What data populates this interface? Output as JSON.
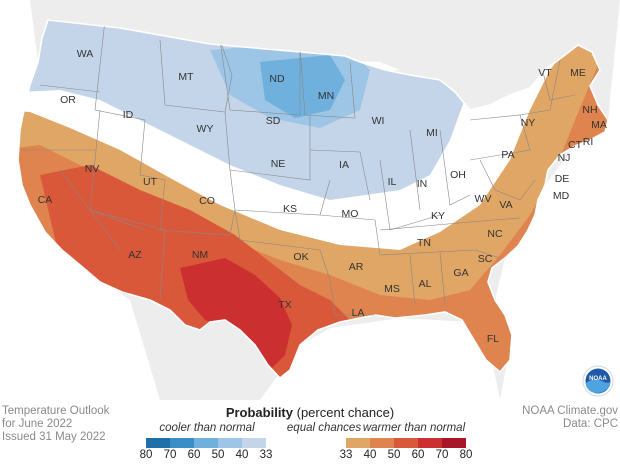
{
  "caption": {
    "title_line1": "Temperature Outlook",
    "title_line2": "for June 2022",
    "issued": "Issued 31 May 2022",
    "source_line1": "NOAA Climate.gov",
    "source_line2": "Data: CPC"
  },
  "legend": {
    "title_bold": "Probability",
    "title_rest": " (percent chance)",
    "cooler_label": "cooler than normal",
    "equal_label": "equal chances",
    "warmer_label": "warmer than normal",
    "cool_ticks": [
      "80",
      "70",
      "60",
      "50",
      "40",
      "33"
    ],
    "warm_ticks": [
      "33",
      "40",
      "50",
      "60",
      "70",
      "80"
    ],
    "cool_colors": [
      "#1f6fa8",
      "#3b8fc7",
      "#6fb0dd",
      "#9cc5e6",
      "#c4d5ea"
    ],
    "warm_colors": [
      "#e0a665",
      "#e0844f",
      "#d9583a",
      "#cc2f30",
      "#a9162a"
    ]
  },
  "map": {
    "states": [
      "WA",
      "OR",
      "ID",
      "MT",
      "WY",
      "ND",
      "SD",
      "MN",
      "NE",
      "IA",
      "WI",
      "MI",
      "IL",
      "IN",
      "OH",
      "KS",
      "MO",
      "KY",
      "CO",
      "UT",
      "NV",
      "CA",
      "AZ",
      "NM",
      "TX",
      "OK",
      "AR",
      "TN",
      "MS",
      "AL",
      "GA",
      "SC",
      "NC",
      "VA",
      "WV",
      "PA",
      "NY",
      "VT",
      "ME",
      "NH",
      "MA",
      "CT",
      "RI",
      "NJ",
      "DE",
      "MD",
      "LA",
      "FL"
    ],
    "logo_text": "NOAA"
  }
}
